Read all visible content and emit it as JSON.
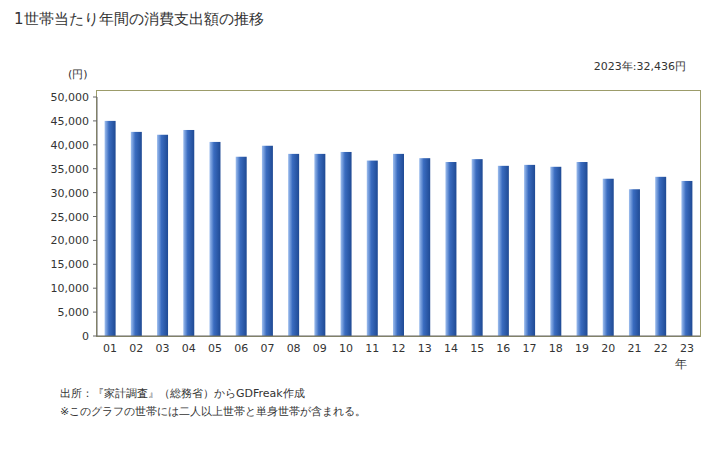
{
  "chart_data": {
    "type": "bar",
    "title": "1世帯当たり年間の消費支出額の推移",
    "annotation": "2023年:32,436円",
    "y_label": "(円)",
    "x_label": "年",
    "source": "出所：『家計調査』（総務省）からGDFreak作成",
    "note": "※このグラフの世帯には二人以上世帯と単身世帯が含まれる。",
    "categories": [
      "01",
      "02",
      "03",
      "04",
      "05",
      "06",
      "07",
      "08",
      "09",
      "10",
      "11",
      "12",
      "13",
      "14",
      "15",
      "16",
      "17",
      "18",
      "19",
      "20",
      "21",
      "22",
      "23"
    ],
    "values": [
      45000,
      42700,
      42100,
      43100,
      40600,
      37500,
      39800,
      38100,
      38100,
      38500,
      36700,
      38100,
      37200,
      36400,
      37000,
      35600,
      35800,
      35400,
      36400,
      32900,
      30700,
      33300,
      32436
    ],
    "color": "#3a6cc0",
    "ylim": [
      0,
      50000
    ],
    "yticks": [
      0,
      {
        "value": 5000,
        "label": "5,000"
      },
      {
        "value": 10000,
        "label": "10,000"
      },
      {
        "value": 15000,
        "label": "15,000"
      },
      {
        "value": 20000,
        "label": "20,000"
      },
      {
        "value": 25000,
        "label": "25,000"
      },
      {
        "value": 30000,
        "label": "30,000"
      },
      {
        "value": 35000,
        "label": "35,000"
      },
      {
        "value": 40000,
        "label": "40,000"
      },
      {
        "value": 45000,
        "label": "45,000"
      },
      {
        "value": 50000,
        "label": "50,000"
      }
    ],
    "grid": false
  }
}
